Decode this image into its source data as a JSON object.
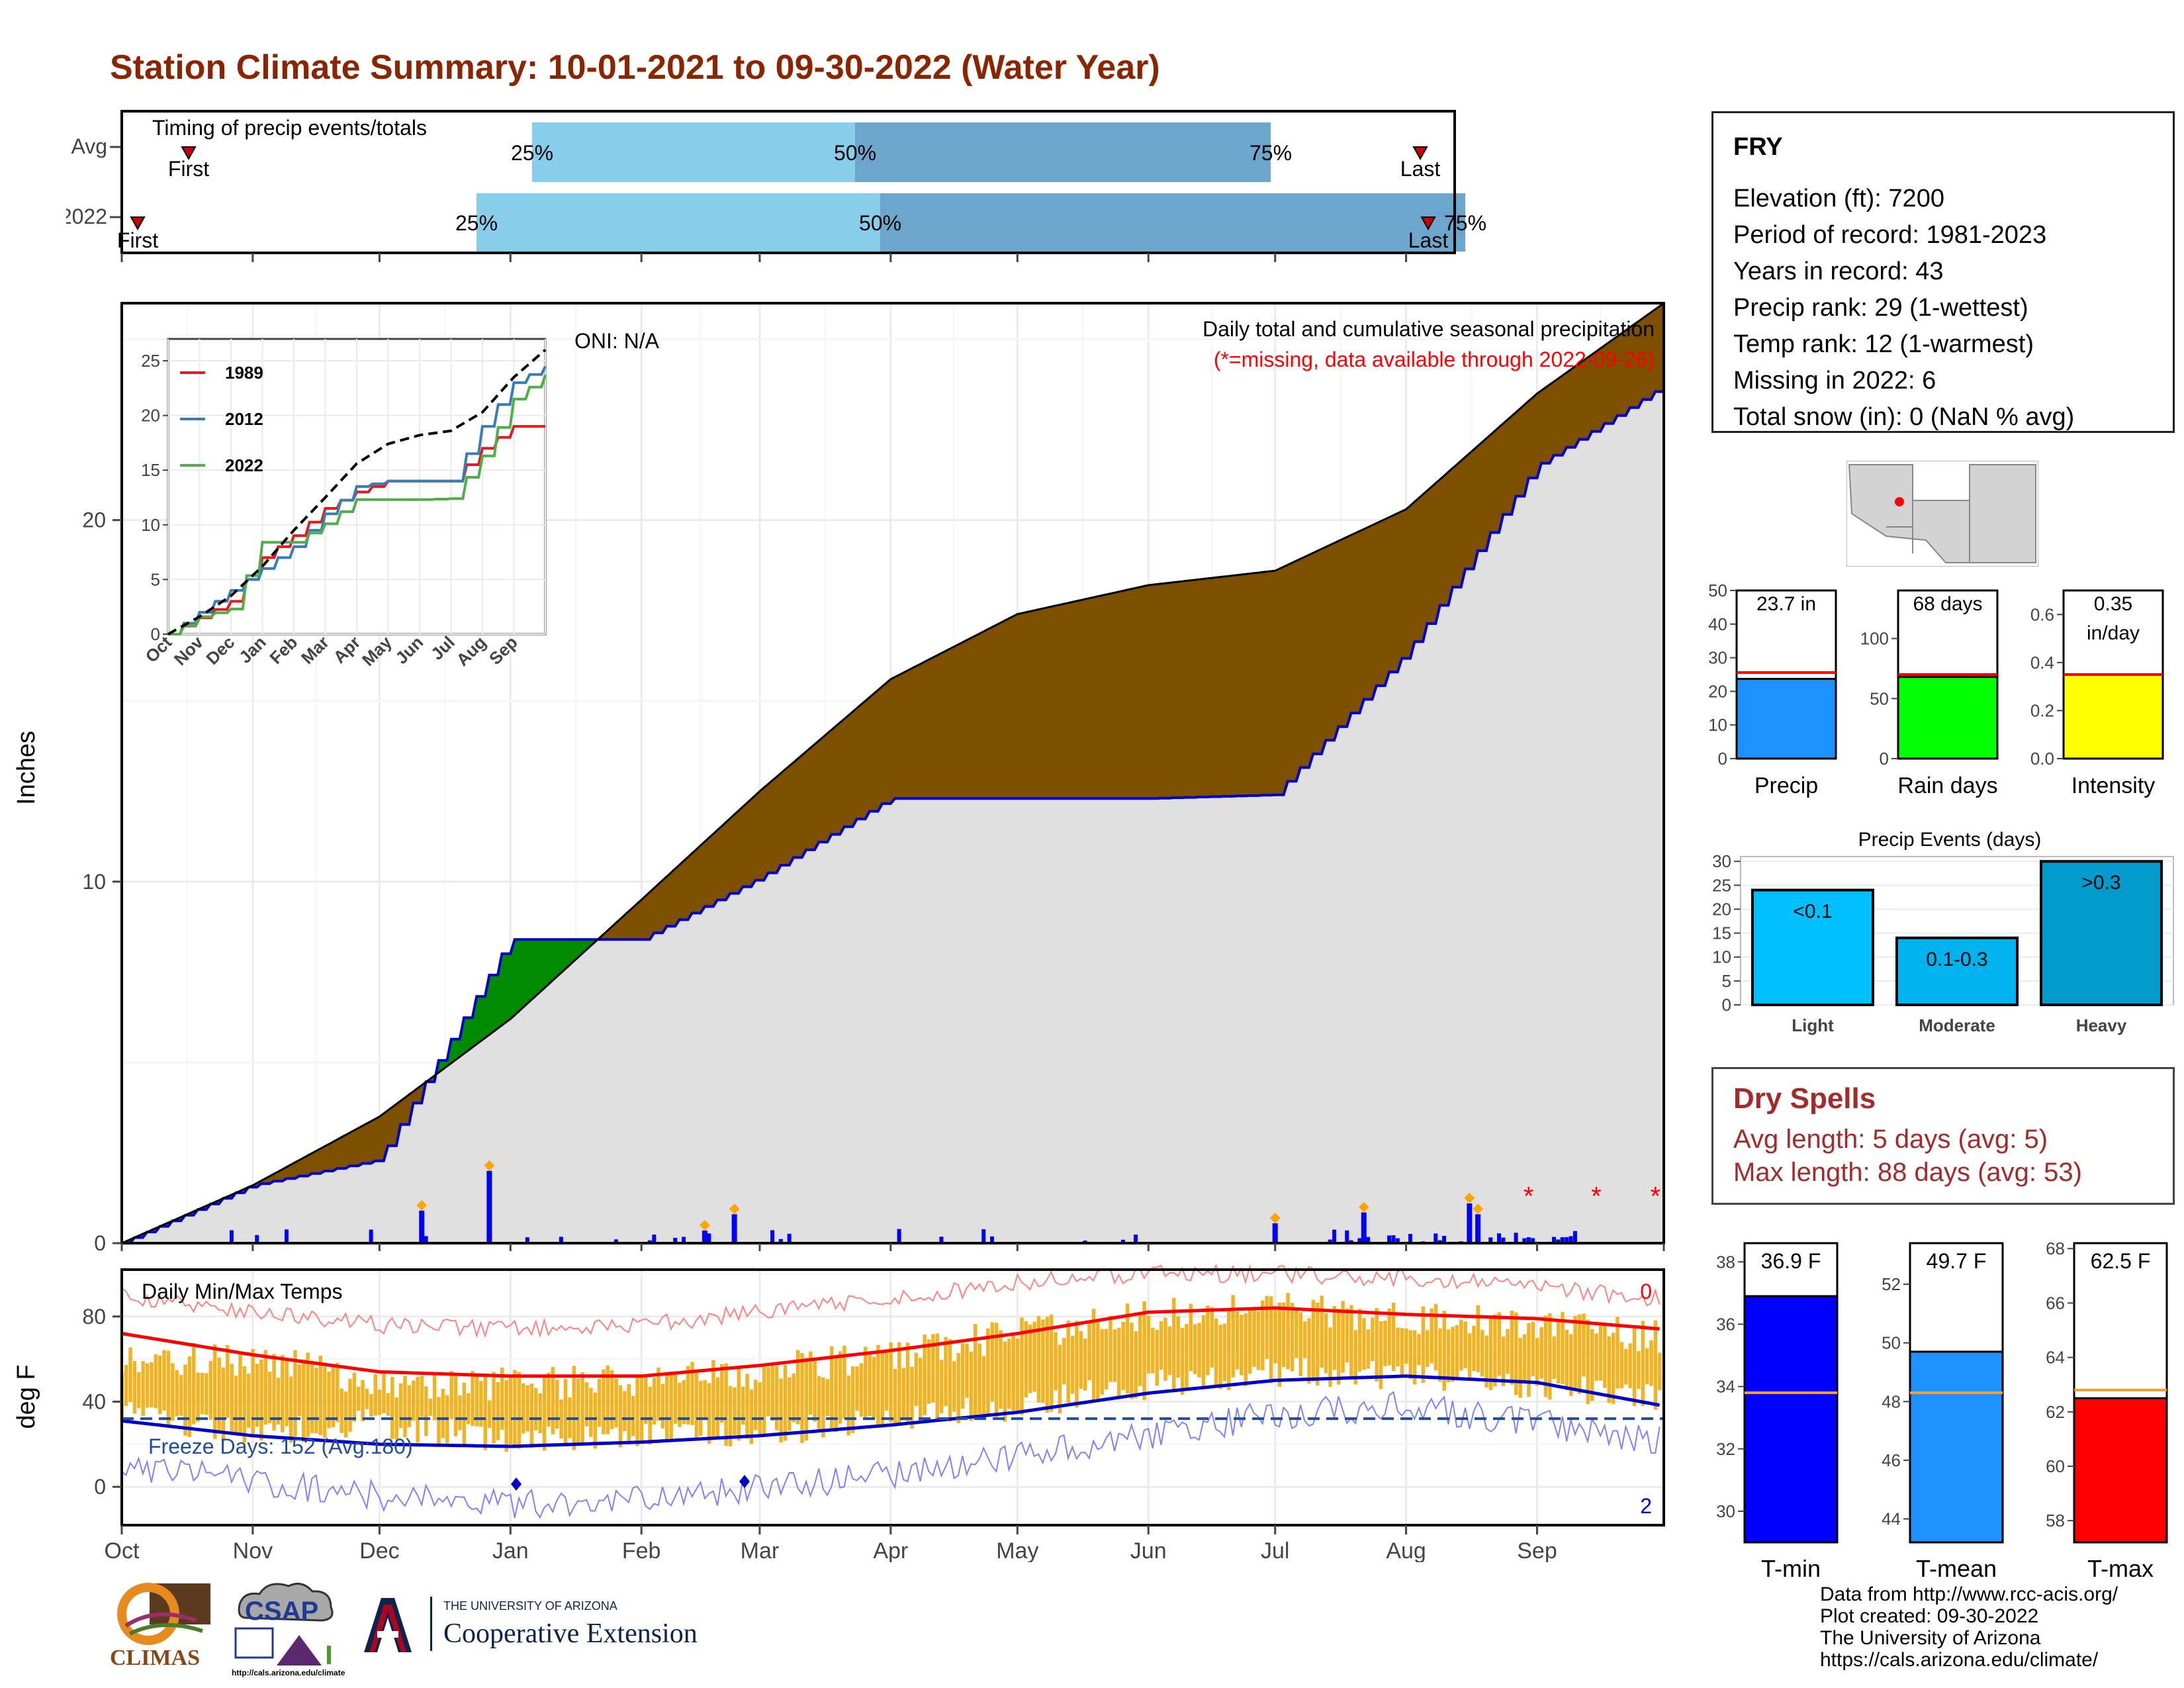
{
  "title": "Station Climate Summary: 10-01-2021 to 09-30-2022 (Water Year)",
  "timing": {
    "title": "Timing of precip events/totals",
    "rows": [
      {
        "label": "Avg",
        "first_label": "First",
        "last_label": "Last",
        "p25": "25%",
        "p50": "50%",
        "p75": "75%"
      },
      {
        "label": "2022",
        "first_label": "First",
        "last_label": "Last",
        "p25": "25%",
        "p50": "50%",
        "p75": "75%"
      }
    ]
  },
  "precip_panel": {
    "ylabel": "Inches",
    "oni": "ONI: N/A",
    "caption": "Daily total and cumulative seasonal precipitation",
    "missing_note": "(*=missing, data available through 2022-09-26)",
    "months": [
      "Oct",
      "Nov",
      "Dec",
      "Jan",
      "Feb",
      "Mar",
      "Apr",
      "May",
      "Jun",
      "Jul",
      "Aug",
      "Sep"
    ],
    "yticks": [
      "0",
      "10",
      "20"
    ],
    "missing_marker": "*"
  },
  "inset": {
    "months": [
      "Oct",
      "Nov",
      "Dec",
      "Jan",
      "Feb",
      "Mar",
      "Apr",
      "May",
      "Jun",
      "Jul",
      "Aug",
      "Sep"
    ],
    "yticks": [
      "0",
      "5",
      "10",
      "15",
      "20",
      "25"
    ],
    "legend": [
      {
        "name": "1989",
        "color": "#E41A1C"
      },
      {
        "name": "2012",
        "color": "#377EB8"
      },
      {
        "name": "2022",
        "color": "#4DAF4A"
      }
    ]
  },
  "temp_panel": {
    "ylabel": "deg F",
    "title": "Daily Min/Max Temps",
    "freeze": "Freeze Days: 152 (Avg:180)",
    "count_top": "0",
    "count_bottom": "2",
    "yticks": [
      "0",
      "40",
      "80"
    ],
    "months": [
      "Oct",
      "Nov",
      "Dec",
      "Jan",
      "Feb",
      "Mar",
      "Apr",
      "May",
      "Jun",
      "Jul",
      "Aug",
      "Sep"
    ]
  },
  "station": {
    "name": "FRY",
    "lines": [
      "Elevation (ft): 7200",
      "Period of record: 1981-2023",
      "Years in record: 43",
      "Precip rank: 29 (1-wettest)",
      "Temp rank: 12 (1-warmest)",
      "Missing in 2022: 6",
      "Total snow (in): 0 (NaN % avg)"
    ]
  },
  "mini_bars": [
    {
      "label": "Precip",
      "value_label": "23.7 in",
      "value_label2": "",
      "color": "#1E90FF",
      "ticks": [
        "0",
        "10",
        "20",
        "30",
        "40",
        "50"
      ]
    },
    {
      "label": "Rain days",
      "value_label": "68 days",
      "value_label2": "",
      "color": "#00FF00",
      "ticks": [
        "0",
        "50",
        "100"
      ]
    },
    {
      "label": "Intensity",
      "value_label": "0.35",
      "value_label2": "in/day",
      "color": "#FFFF00",
      "ticks": [
        "0.0",
        "0.2",
        "0.4",
        "0.6"
      ]
    }
  ],
  "events": {
    "title": "Precip Events (days)",
    "yticks": [
      "0",
      "5",
      "10",
      "15",
      "20",
      "25",
      "30"
    ],
    "categories": [
      "Light",
      "Moderate",
      "Heavy"
    ],
    "bar_labels": [
      "<0.1",
      "0.1-0.3",
      ">0.3"
    ]
  },
  "dry_spells": {
    "title": "Dry Spells",
    "avg": "Avg length: 5 days (avg: 5)",
    "max": "Max length: 88 days (avg: 53)"
  },
  "temp_bars": [
    {
      "label": "T-min",
      "value_label": "36.9 F",
      "color": "#0000FF",
      "ticks": [
        "30",
        "32",
        "34",
        "36",
        "38"
      ]
    },
    {
      "label": "T-mean",
      "value_label": "49.7 F",
      "color": "#1E90FF",
      "ticks": [
        "44",
        "46",
        "48",
        "50",
        "52"
      ]
    },
    {
      "label": "T-max",
      "value_label": "62.5 F",
      "color": "#FF0000",
      "ticks": [
        "58",
        "60",
        "62",
        "64",
        "66",
        "68"
      ]
    }
  ],
  "footer": {
    "lines": [
      "Data from http://www.rcc-acis.org/",
      "Plot created: 09-30-2022",
      "The University of Arizona",
      "https://cals.arizona.edu/climate/"
    ]
  },
  "logos": {
    "climas": "CLIMAS",
    "csap": "CSAP",
    "csap_url": "http://cals.arizona.edu/climate",
    "ua_small": "THE UNIVERSITY OF ARIZONA",
    "ua_big": "Cooperative Extension"
  },
  "chart_data": [
    {
      "type": "area",
      "subtype": "cumulative precipitation (water year)",
      "ylabel": "Inches",
      "ylim": [
        0,
        26
      ],
      "x_unit": "month",
      "series": [
        {
          "name": "Avg",
          "months": [
            "Oct",
            "Nov",
            "Dec",
            "Jan",
            "Feb",
            "Mar",
            "Apr",
            "May",
            "Jun",
            "Jul",
            "Aug",
            "Sep",
            "Oct"
          ],
          "values": [
            0,
            1.6,
            3.5,
            6.2,
            9.5,
            12.5,
            15.6,
            17.4,
            18.2,
            18.6,
            20.3,
            23.5,
            26.0
          ]
        },
        {
          "name": "2022",
          "months": [
            "Oct",
            "Nov",
            "Dec",
            "Jan",
            "Feb",
            "Mar",
            "Apr",
            "May",
            "Jun",
            "Jul",
            "Aug",
            "Sep",
            "Oct"
          ],
          "values": [
            0,
            1.6,
            2.3,
            8.4,
            8.4,
            10.1,
            12.3,
            12.3,
            12.3,
            12.4,
            16.3,
            21.5,
            23.7
          ]
        }
      ],
      "daily_spikes": [
        {
          "month": "Dec",
          "day": 10,
          "value": 0.9
        },
        {
          "month": "Dec",
          "day": 26,
          "value": 2.0
        },
        {
          "month": "Feb",
          "day": 15,
          "value": 0.35
        },
        {
          "month": "Feb",
          "day": 22,
          "value": 0.8
        },
        {
          "month": "Jun",
          "day": 30,
          "value": 0.55
        },
        {
          "month": "Jul",
          "day": 21,
          "value": 0.85
        },
        {
          "month": "Aug",
          "day": 15,
          "value": 1.1
        },
        {
          "month": "Aug",
          "day": 17,
          "value": 0.8
        }
      ]
    },
    {
      "type": "line",
      "subtype": "inset cumulative precip comparison",
      "ylim": [
        0,
        26
      ],
      "months": [
        "Oct",
        "Nov",
        "Dec",
        "Jan",
        "Feb",
        "Mar",
        "Apr",
        "May",
        "Jun",
        "Jul",
        "Aug",
        "Sep",
        "Oct"
      ],
      "series": [
        {
          "name": "1989",
          "values": [
            0,
            1.5,
            3.0,
            7.0,
            9.0,
            11.5,
            13.0,
            14.0,
            14.0,
            14.0,
            17.0,
            19.0,
            19.0
          ]
        },
        {
          "name": "2012",
          "values": [
            0,
            2.0,
            4.0,
            6.0,
            8.0,
            11.0,
            13.5,
            14.0,
            14.0,
            14.0,
            19.0,
            23.0,
            24.5
          ]
        },
        {
          "name": "2022",
          "values": [
            0,
            1.6,
            2.3,
            8.4,
            8.4,
            10.1,
            12.3,
            12.3,
            12.3,
            12.4,
            16.3,
            21.5,
            23.7
          ]
        },
        {
          "name": "Avg",
          "values": [
            0,
            1.6,
            3.5,
            6.2,
            9.5,
            12.5,
            15.6,
            17.4,
            18.2,
            18.6,
            20.3,
            23.5,
            26.0
          ]
        }
      ]
    },
    {
      "type": "bar",
      "subtype": "daily min/max temperature",
      "ylabel": "deg F",
      "ylim": [
        -15,
        100
      ],
      "months": [
        "Oct",
        "Nov",
        "Dec",
        "Jan",
        "Feb",
        "Mar",
        "Apr",
        "May",
        "Jun",
        "Jul",
        "Aug",
        "Sep",
        "Oct"
      ],
      "series": [
        {
          "name": "avg max",
          "values": [
            72,
            62,
            54,
            52,
            52,
            57,
            64,
            72,
            82,
            84,
            81,
            79,
            74
          ]
        },
        {
          "name": "avg min",
          "values": [
            31,
            24,
            20,
            19,
            21,
            24,
            29,
            35,
            44,
            50,
            52,
            49,
            38
          ]
        },
        {
          "name": "record max",
          "values": [
            90,
            82,
            76,
            74,
            76,
            82,
            88,
            96,
            100,
            100,
            98,
            94,
            88
          ]
        },
        {
          "name": "record min",
          "values": [
            10,
            2,
            -4,
            -8,
            -6,
            0,
            6,
            14,
            24,
            34,
            38,
            30,
            22
          ]
        },
        {
          "name": "observed max",
          "values": [
            60,
            60,
            50,
            48,
            50,
            54,
            62,
            72,
            80,
            84,
            80,
            76,
            70
          ]
        },
        {
          "name": "observed min",
          "values": [
            34,
            26,
            30,
            22,
            24,
            26,
            30,
            38,
            48,
            54,
            52,
            48,
            42
          ]
        }
      ],
      "freeze_line": 32
    },
    {
      "type": "bar",
      "subtype": "annual precip total",
      "categories": [
        "Precip"
      ],
      "values": [
        23.7
      ],
      "average": 25.6,
      "ylim": [
        0,
        50
      ]
    },
    {
      "type": "bar",
      "subtype": "rain days",
      "categories": [
        "Rain days"
      ],
      "values": [
        68
      ],
      "average": 70,
      "ylim": [
        0,
        140
      ]
    },
    {
      "type": "bar",
      "subtype": "intensity",
      "categories": [
        "Intensity"
      ],
      "values": [
        0.35
      ],
      "average": 0.35,
      "ylim": [
        0,
        0.7
      ]
    },
    {
      "type": "bar",
      "subtype": "precip events (days)",
      "categories": [
        "Light",
        "Moderate",
        "Heavy"
      ],
      "values": [
        24,
        14,
        30
      ],
      "ylim": [
        0,
        31
      ]
    },
    {
      "type": "bar",
      "subtype": "temperature summary",
      "categories": [
        "T-min",
        "T-mean",
        "T-max"
      ],
      "values": [
        36.9,
        49.7,
        62.5
      ],
      "averages": [
        33.8,
        48.3,
        62.8
      ]
    }
  ]
}
